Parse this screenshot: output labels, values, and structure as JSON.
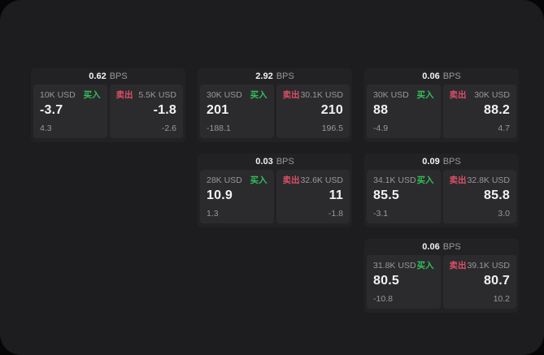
{
  "labels": {
    "bps_unit": "BPS",
    "buy": "买入",
    "sell": "卖出"
  },
  "colors": {
    "outer_bg": "#060606",
    "screen_bg": "#1d1d1f",
    "card_bg": "#222224",
    "pane_bg": "#2b2b2d",
    "text_primary": "#f2f2f2",
    "text_muted": "#98989c",
    "buy_green": "#33bf5a",
    "sell_red": "#dc4f67"
  },
  "cards": [
    {
      "bps": "0.62",
      "buy": {
        "size": "10K USD",
        "price": "-3.7",
        "delta": "4.3"
      },
      "sell": {
        "size": "5.5K USD",
        "price": "-1.8",
        "delta": "-2.6"
      }
    },
    {
      "bps": "2.92",
      "buy": {
        "size": "30K USD",
        "price": "201",
        "delta": "-188.1"
      },
      "sell": {
        "size": "30.1K USD",
        "price": "210",
        "delta": "196.5"
      }
    },
    {
      "bps": "0.06",
      "buy": {
        "size": "30K USD",
        "price": "88",
        "delta": "-4.9"
      },
      "sell": {
        "size": "30K USD",
        "price": "88.2",
        "delta": "4.7"
      }
    },
    {
      "bps": "0.03",
      "buy": {
        "size": "28K USD",
        "price": "10.9",
        "delta": "1.3"
      },
      "sell": {
        "size": "32.6K USD",
        "price": "11",
        "delta": "-1.8"
      }
    },
    {
      "bps": "0.09",
      "buy": {
        "size": "34.1K USD",
        "price": "85.5",
        "delta": "-3.1"
      },
      "sell": {
        "size": "32.8K USD",
        "price": "85.8",
        "delta": "3.0"
      }
    },
    {
      "bps": "0.06",
      "buy": {
        "size": "31.8K USD",
        "price": "80.5",
        "delta": "-10.8"
      },
      "sell": {
        "size": "39.1K USD",
        "price": "80.7",
        "delta": "10.2"
      }
    }
  ]
}
